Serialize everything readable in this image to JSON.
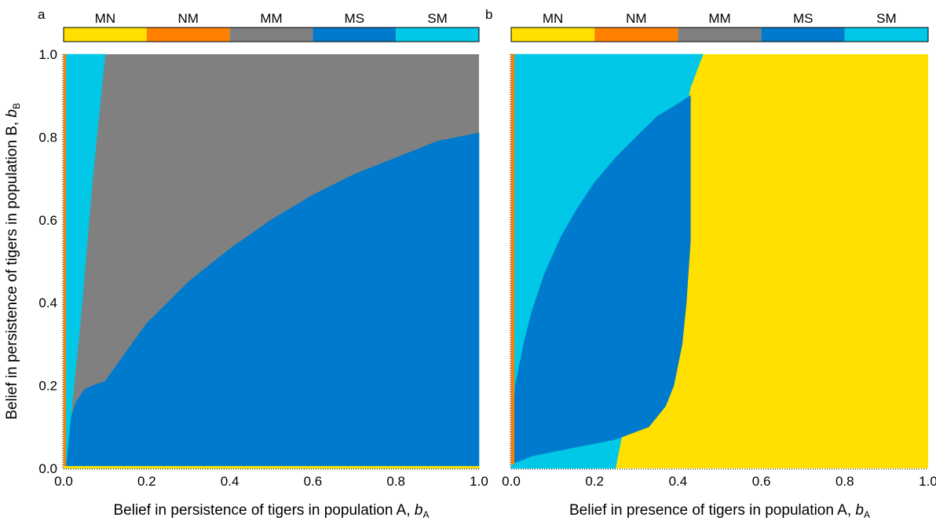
{
  "chart_data": [
    {
      "panel_label": "a",
      "type": "heatmap",
      "xlabel": "Belief in persistence of tigers in population A, ",
      "xlabel_var": "b",
      "xlabel_sub": "A",
      "ylabel": "Belief in persistence of tigers in population B, ",
      "ylabel_var": "b",
      "ylabel_sub": "B",
      "xlim": [
        0,
        1
      ],
      "ylim": [
        0,
        1
      ],
      "x_ticks": [
        "0.0",
        "0.2",
        "0.4",
        "0.6",
        "0.8",
        "1.0"
      ],
      "y_ticks": [
        "0.0",
        "0.2",
        "0.4",
        "0.6",
        "0.8",
        "1.0"
      ],
      "legend": {
        "position": "top",
        "entries": [
          {
            "label": "MN",
            "color": "#FFE000"
          },
          {
            "label": "NM",
            "color": "#FF8000"
          },
          {
            "label": "MM",
            "color": "#808080"
          },
          {
            "label": "MS",
            "color": "#007ACC"
          },
          {
            "label": "SM",
            "color": "#00C8E6"
          }
        ]
      },
      "regions": [
        {
          "category": "MS",
          "color": "#007ACC",
          "boundary": [
            [
              0.0,
              0.0
            ],
            [
              0.01,
              0.1
            ],
            [
              0.03,
              0.16
            ],
            [
              0.05,
              0.19
            ],
            [
              0.07,
              0.2
            ],
            [
              0.1,
              0.21
            ],
            [
              0.15,
              0.28
            ],
            [
              0.2,
              0.35
            ],
            [
              0.3,
              0.45
            ],
            [
              0.4,
              0.53
            ],
            [
              0.5,
              0.6
            ],
            [
              0.6,
              0.66
            ],
            [
              0.7,
              0.71
            ],
            [
              0.8,
              0.75
            ],
            [
              0.9,
              0.79
            ],
            [
              1.0,
              0.81
            ],
            [
              1.0,
              0.0
            ]
          ]
        },
        {
          "category": "SM",
          "color": "#00C8E6",
          "boundary": [
            [
              0.005,
              0.0
            ],
            [
              0.005,
              1.0
            ],
            [
              0.1,
              1.0
            ],
            [
              0.07,
              0.7
            ],
            [
              0.04,
              0.35
            ],
            [
              0.015,
              0.1
            ]
          ]
        },
        {
          "category": "NM",
          "color": "#FF8000",
          "boundary": [
            [
              0.0,
              0.0
            ],
            [
              0.005,
              0.0
            ],
            [
              0.005,
              1.0
            ],
            [
              0.0,
              1.0
            ]
          ]
        },
        {
          "category": "MN",
          "color": "#FFE000",
          "boundary": [
            [
              0.0,
              0.0
            ],
            [
              1.0,
              0.0
            ],
            [
              1.0,
              0.005
            ],
            [
              0.0,
              0.005
            ]
          ]
        }
      ],
      "background_category": "MM",
      "background_color": "#808080"
    },
    {
      "panel_label": "b",
      "type": "heatmap",
      "xlabel": "Belief in presence of tigers in population A, ",
      "xlabel_var": "b",
      "xlabel_sub": "A",
      "xlim": [
        0,
        1
      ],
      "ylim": [
        0,
        1
      ],
      "x_ticks": [
        "0.0",
        "0.2",
        "0.4",
        "0.6",
        "0.8",
        "1.0"
      ],
      "legend": {
        "position": "top",
        "entries": [
          {
            "label": "MN",
            "color": "#FFE000"
          },
          {
            "label": "NM",
            "color": "#FF8000"
          },
          {
            "label": "MM",
            "color": "#808080"
          },
          {
            "label": "MS",
            "color": "#007ACC"
          },
          {
            "label": "SM",
            "color": "#00C8E6"
          }
        ]
      },
      "regions": [
        {
          "category": "SM",
          "color": "#00C8E6",
          "boundary": [
            [
              0.0,
              0.0
            ],
            [
              0.0,
              1.0
            ],
            [
              0.46,
              1.0
            ],
            [
              0.43,
              0.92
            ],
            [
              0.25,
              0.0
            ]
          ]
        },
        {
          "category": "MS",
          "color": "#007ACC",
          "boundary": [
            [
              0.0,
              0.02
            ],
            [
              0.01,
              0.2
            ],
            [
              0.03,
              0.3
            ],
            [
              0.05,
              0.38
            ],
            [
              0.08,
              0.47
            ],
            [
              0.12,
              0.56
            ],
            [
              0.16,
              0.63
            ],
            [
              0.2,
              0.69
            ],
            [
              0.25,
              0.75
            ],
            [
              0.3,
              0.8
            ],
            [
              0.35,
              0.85
            ],
            [
              0.4,
              0.88
            ],
            [
              0.43,
              0.9
            ],
            [
              0.43,
              0.55
            ],
            [
              0.42,
              0.4
            ],
            [
              0.41,
              0.3
            ],
            [
              0.39,
              0.2
            ],
            [
              0.37,
              0.15
            ],
            [
              0.33,
              0.1
            ],
            [
              0.25,
              0.07
            ],
            [
              0.15,
              0.05
            ],
            [
              0.05,
              0.03
            ],
            [
              0.0,
              0.01
            ]
          ]
        },
        {
          "category": "NM",
          "color": "#FF8000",
          "boundary": [
            [
              0.0,
              0.01
            ],
            [
              0.007,
              0.01
            ],
            [
              0.007,
              1.0
            ],
            [
              0.0,
              1.0
            ]
          ]
        }
      ],
      "background_category": "MN",
      "background_color": "#FFE000"
    }
  ]
}
